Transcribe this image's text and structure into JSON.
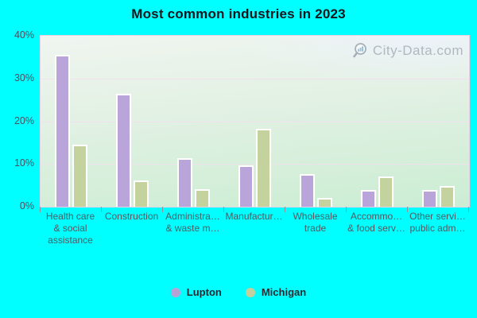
{
  "title": "Most common industries in 2023",
  "watermark": "City-Data.com",
  "colors": {
    "background": "#00ffff",
    "lupton": "#b9a5da",
    "michigan": "#c4d39d",
    "gridline": "#f1e1ee",
    "plot_border": "#e7d2e6",
    "title_text": "#16161d",
    "axis_text": "#4e5a60",
    "watermark_text": "#a6afb8"
  },
  "chart_data": {
    "type": "bar",
    "title": "Most common industries in 2023",
    "categories": [
      "Health care & social assistance",
      "Construction",
      "Administra… & waste m…",
      "Manufactur…",
      "Wholesale trade",
      "Accommo… & food serv…",
      "Other servi… public adm…"
    ],
    "category_label_lines": [
      [
        "Health care",
        "& social",
        "assistance"
      ],
      [
        "Construction"
      ],
      [
        "Administra…",
        "& waste m…"
      ],
      [
        "Manufactur…"
      ],
      [
        "Wholesale",
        "trade"
      ],
      [
        "Accommo…",
        "& food serv…"
      ],
      [
        "Other servi…",
        "public adm…"
      ]
    ],
    "series": [
      {
        "name": "Lupton",
        "color": "#b9a5da",
        "values": [
          35.2,
          26.0,
          11.0,
          9.3,
          7.3,
          3.5,
          3.5
        ]
      },
      {
        "name": "Michigan",
        "color": "#c4d39d",
        "values": [
          14.1,
          5.8,
          3.7,
          17.9,
          1.7,
          6.7,
          4.4
        ]
      }
    ],
    "ylabel": "",
    "xlabel": "",
    "ylim": [
      0,
      40
    ],
    "yticks": [
      40,
      30,
      20,
      10,
      0
    ],
    "ytick_labels": [
      "40%",
      "30%",
      "20%",
      "10%",
      "0%"
    ],
    "grid": true,
    "legend_position": "bottom"
  },
  "legend": {
    "items": [
      {
        "label": "Lupton",
        "color": "#b5a3d6"
      },
      {
        "label": "Michigan",
        "color": "#c3cf9e"
      }
    ]
  }
}
